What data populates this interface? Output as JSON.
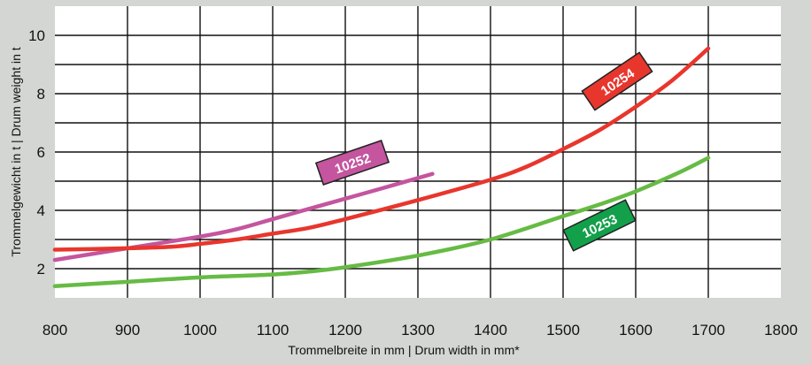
{
  "chart_data": {
    "type": "line",
    "xlabel": "Trommelbreite in mm | Drum width in mm*",
    "ylabel": "Trommelgewicht in t | Drum weight in t",
    "xlim": [
      800,
      1800
    ],
    "ylim": [
      1,
      11
    ],
    "x_ticks": [
      800,
      900,
      1000,
      1100,
      1200,
      1300,
      1400,
      1500,
      1600,
      1700,
      1800
    ],
    "y_ticks": [
      2,
      4,
      6,
      8,
      10
    ],
    "grid": true,
    "series": [
      {
        "name": "10252",
        "color": "#c4559e",
        "tag_color": "#c4559e",
        "x": [
          800,
          900,
          1000,
          1050,
          1100,
          1150,
          1200,
          1250,
          1320
        ],
        "y": [
          2.3,
          2.7,
          3.1,
          3.35,
          3.7,
          4.05,
          4.4,
          4.75,
          5.25
        ]
      },
      {
        "name": "10253",
        "color": "#66bb44",
        "tag_color": "#12a04a",
        "x": [
          800,
          900,
          1000,
          1100,
          1150,
          1200,
          1300,
          1400,
          1500,
          1550,
          1600,
          1660,
          1700
        ],
        "y": [
          1.4,
          1.55,
          1.7,
          1.8,
          1.9,
          2.05,
          2.45,
          3.0,
          3.8,
          4.2,
          4.65,
          5.3,
          5.8
        ]
      },
      {
        "name": "10254",
        "color": "#e8362d",
        "tag_color": "#e8362d",
        "x": [
          800,
          900,
          960,
          1000,
          1050,
          1100,
          1150,
          1200,
          1300,
          1400,
          1450,
          1500,
          1550,
          1600,
          1650,
          1700
        ],
        "y": [
          2.65,
          2.7,
          2.75,
          2.85,
          3.0,
          3.2,
          3.4,
          3.7,
          4.35,
          5.05,
          5.5,
          6.1,
          6.75,
          7.55,
          8.45,
          9.55
        ]
      }
    ]
  }
}
